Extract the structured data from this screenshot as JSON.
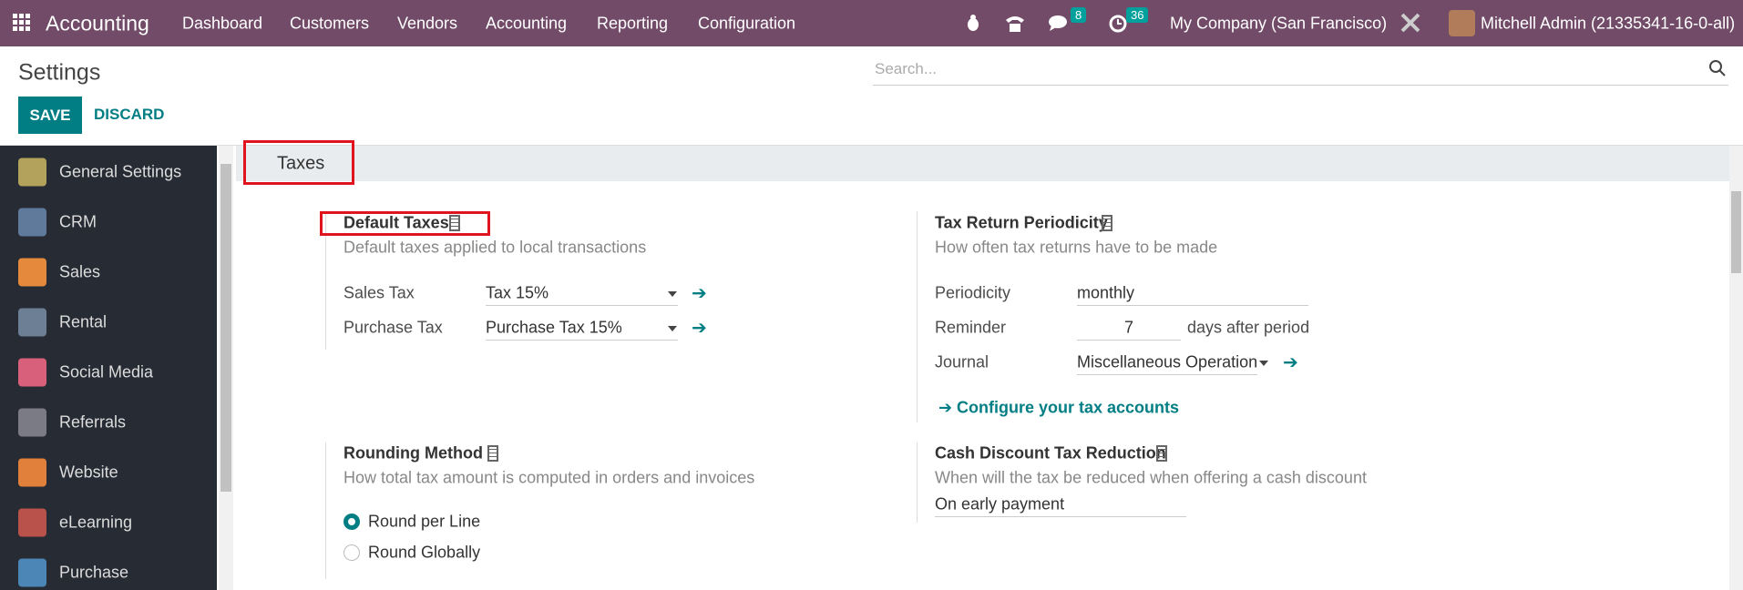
{
  "navbar": {
    "app_name": "Accounting",
    "menu": [
      "Dashboard",
      "Customers",
      "Vendors",
      "Accounting",
      "Reporting",
      "Configuration"
    ],
    "messages_badge": 8,
    "activities_badge": 36,
    "company": "My Company (San Francisco)",
    "user": "Mitchell Admin (21335341-16-0-all)"
  },
  "control_panel": {
    "title": "Settings",
    "save": "SAVE",
    "discard": "DISCARD",
    "search_placeholder": "Search..."
  },
  "sidebar": {
    "items": [
      {
        "label": "General Settings",
        "color": "#b3a25c"
      },
      {
        "label": "CRM",
        "color": "#5f7a9b"
      },
      {
        "label": "Sales",
        "color": "#e58a3c"
      },
      {
        "label": "Rental",
        "color": "#6d7f95"
      },
      {
        "label": "Social Media",
        "color": "#d9607a"
      },
      {
        "label": "Referrals",
        "color": "#7b7b86"
      },
      {
        "label": "Website",
        "color": "#e0803b"
      },
      {
        "label": "eLearning",
        "color": "#b8524a"
      },
      {
        "label": "Purchase",
        "color": "#4c86b6"
      }
    ]
  },
  "section": {
    "title": "Taxes"
  },
  "settings": {
    "default_taxes": {
      "title": "Default Taxes",
      "description": "Default taxes applied to local transactions",
      "fields": [
        {
          "label": "Sales Tax",
          "value": "Tax 15%"
        },
        {
          "label": "Purchase Tax",
          "value": "Purchase Tax 15%"
        }
      ]
    },
    "tax_return_periodicity": {
      "title": "Tax Return Periodicity",
      "description": "How often tax returns have to be made",
      "periodicity_label": "Periodicity",
      "periodicity": "monthly",
      "reminder_label": "Reminder",
      "reminder": 7,
      "reminder_suffix": "days after period",
      "journal_label": "Journal",
      "journal": "Miscellaneous Operations",
      "configure_link": "Configure your tax accounts"
    },
    "rounding_method": {
      "title": "Rounding Method",
      "description": "How total tax amount is computed in orders and invoices",
      "options": [
        "Round per Line",
        "Round Globally"
      ],
      "selected": 0
    },
    "cash_discount": {
      "title": "Cash Discount Tax Reduction",
      "description": "When will the tax be reduced when offering a cash discount",
      "value": "On early payment"
    }
  }
}
